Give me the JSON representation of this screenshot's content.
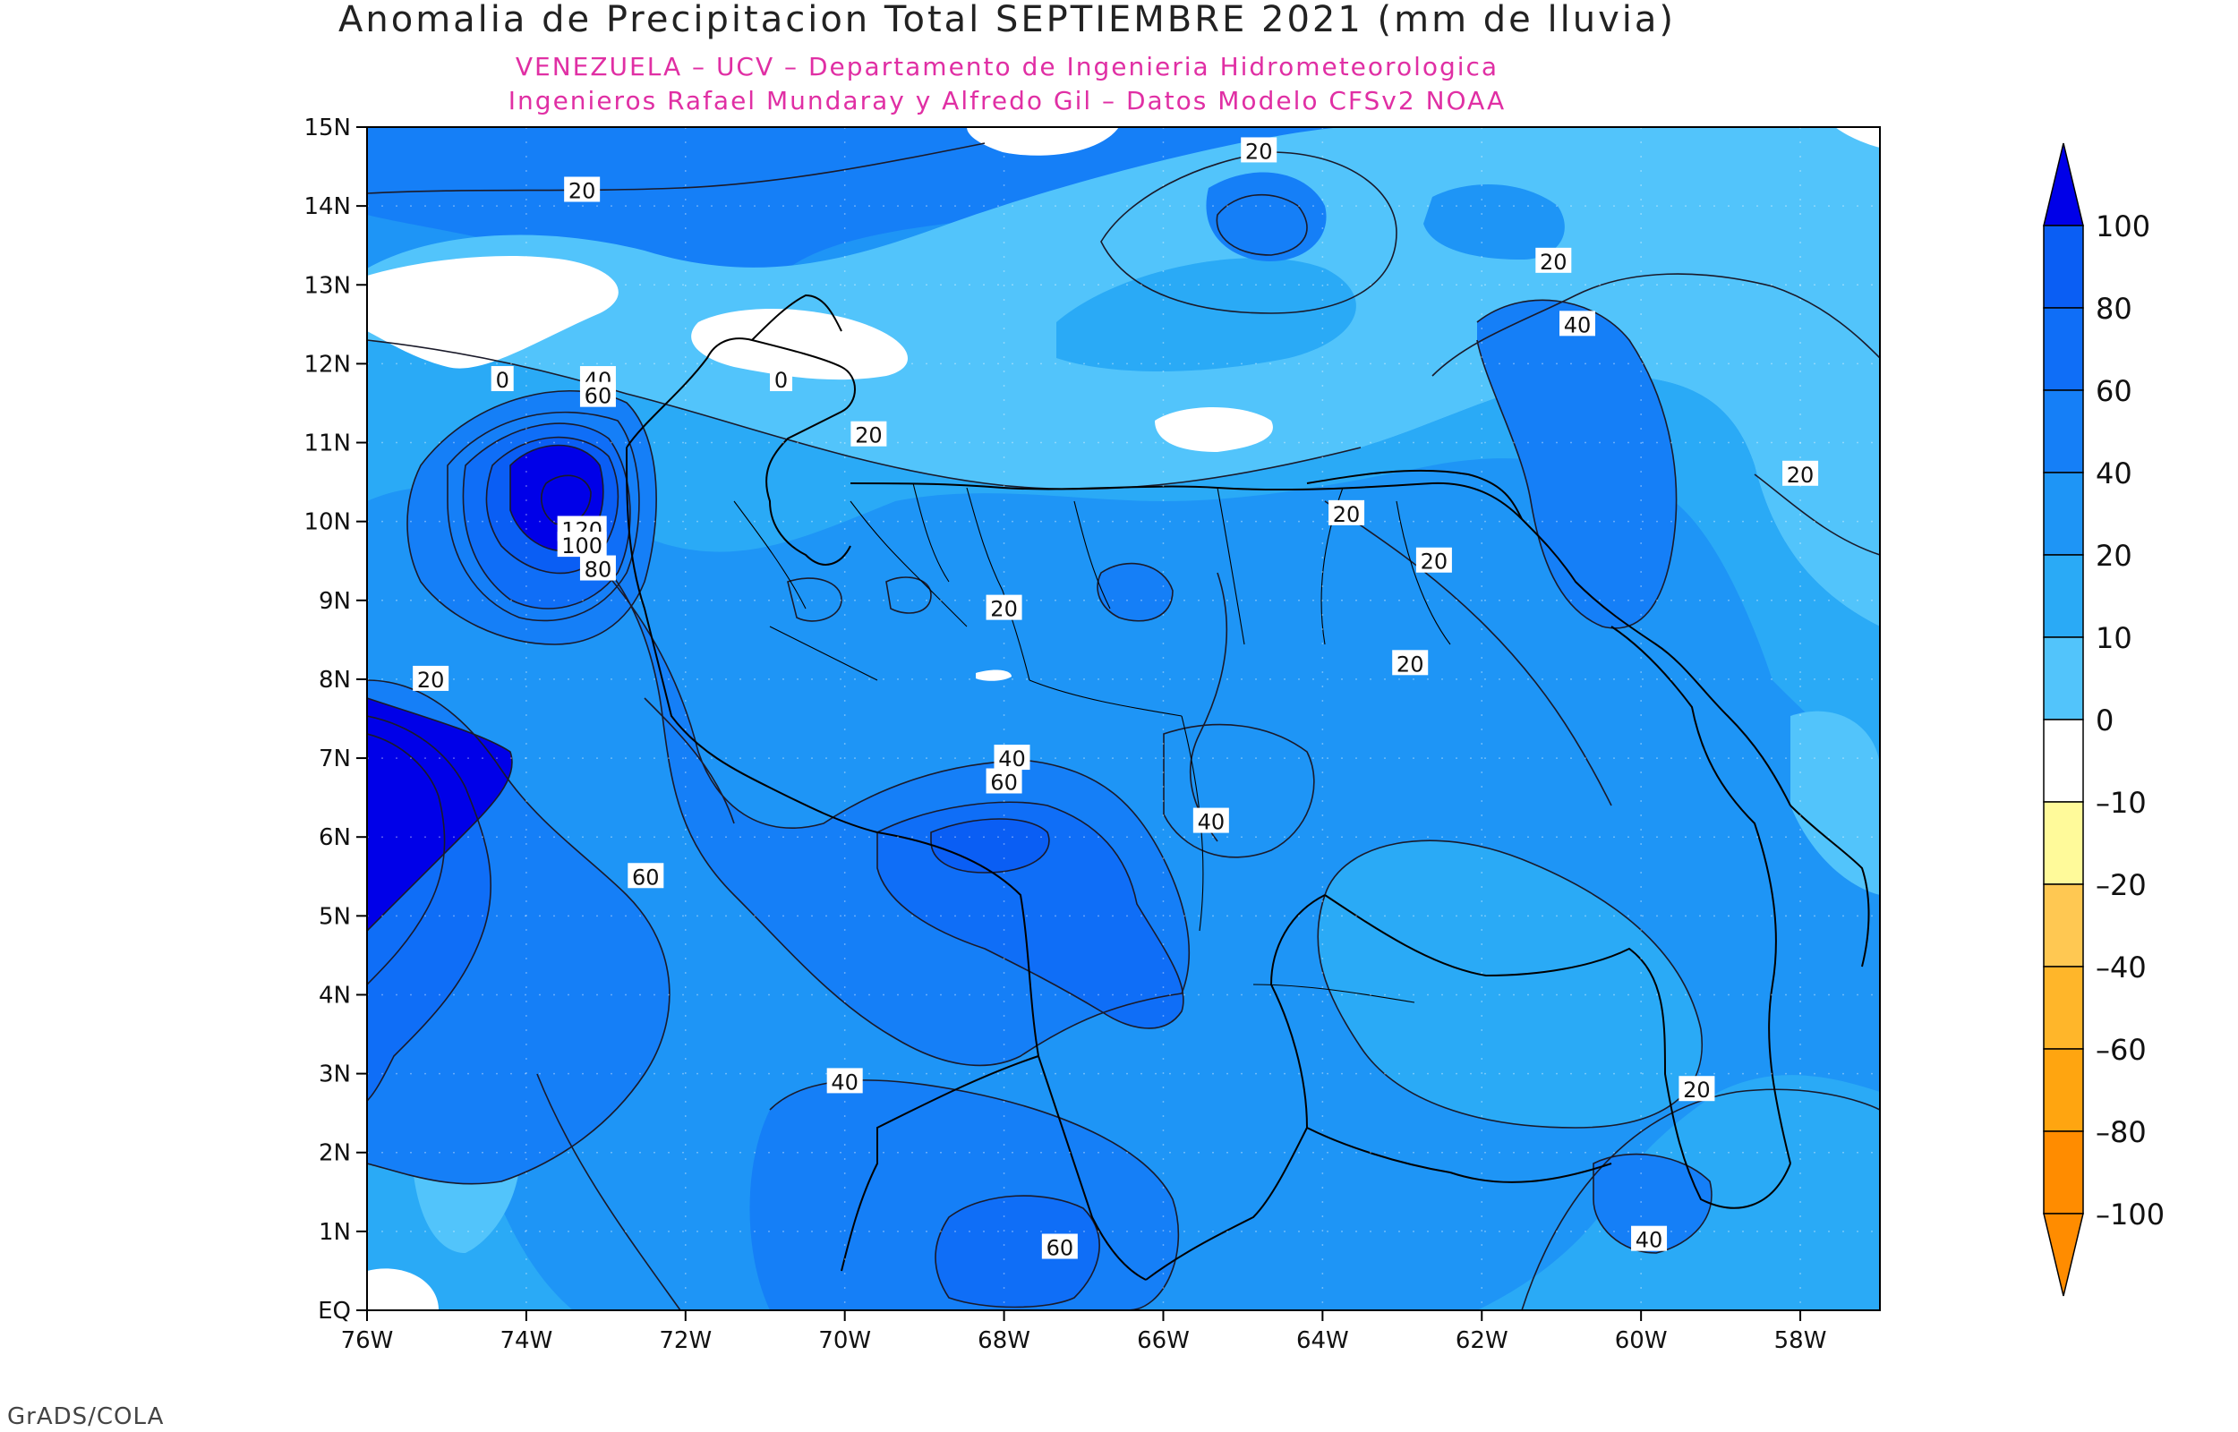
{
  "title": "Anomalia de Precipitacion Total SEPTIEMBRE 2021 (mm de lluvia)",
  "subtitle_1": "VENEZUELA – UCV – Departamento de Ingenieria Hidrometeorologica",
  "subtitle_2": "Ingenieros Rafael Mundaray y Alfredo Gil – Datos Modelo CFSv2 NOAA",
  "credit": "GrADS/COLA",
  "map": {
    "lon_range": [
      -76,
      -57
    ],
    "lat_range": [
      0,
      15
    ],
    "lat_ticks": [
      "EQ",
      "1N",
      "2N",
      "3N",
      "4N",
      "5N",
      "6N",
      "7N",
      "8N",
      "9N",
      "10N",
      "11N",
      "12N",
      "13N",
      "14N",
      "15N"
    ],
    "lon_ticks": [
      "76W",
      "74W",
      "72W",
      "70W",
      "68W",
      "66W",
      "64W",
      "62W",
      "60W",
      "58W"
    ],
    "contour_labels": [
      {
        "text": "20",
        "lon": -73.3,
        "lat": 14.2
      },
      {
        "text": "20",
        "lon": -64.8,
        "lat": 14.7
      },
      {
        "text": "20",
        "lon": -61.1,
        "lat": 13.3
      },
      {
        "text": "40",
        "lon": -60.8,
        "lat": 12.5
      },
      {
        "text": "0",
        "lon": -74.3,
        "lat": 11.8
      },
      {
        "text": "0",
        "lon": -70.8,
        "lat": 11.8
      },
      {
        "text": "40",
        "lon": -73.1,
        "lat": 11.8
      },
      {
        "text": "60",
        "lon": -73.1,
        "lat": 11.6
      },
      {
        "text": "20",
        "lon": -69.7,
        "lat": 11.1
      },
      {
        "text": "20",
        "lon": -58.0,
        "lat": 10.6
      },
      {
        "text": "120",
        "lon": -73.3,
        "lat": 9.9
      },
      {
        "text": "100",
        "lon": -73.3,
        "lat": 9.7
      },
      {
        "text": "80",
        "lon": -73.1,
        "lat": 9.4
      },
      {
        "text": "20",
        "lon": -63.7,
        "lat": 10.1
      },
      {
        "text": "20",
        "lon": -62.6,
        "lat": 9.5
      },
      {
        "text": "20",
        "lon": -68.0,
        "lat": 8.9
      },
      {
        "text": "20",
        "lon": -75.2,
        "lat": 8.0
      },
      {
        "text": "20",
        "lon": -62.9,
        "lat": 8.2
      },
      {
        "text": "40",
        "lon": -67.9,
        "lat": 7.0
      },
      {
        "text": "60",
        "lon": -68.0,
        "lat": 6.7
      },
      {
        "text": "40",
        "lon": -65.4,
        "lat": 6.2
      },
      {
        "text": "60",
        "lon": -72.5,
        "lat": 5.5
      },
      {
        "text": "40",
        "lon": -70.0,
        "lat": 2.9
      },
      {
        "text": "20",
        "lon": -59.3,
        "lat": 2.8
      },
      {
        "text": "40",
        "lon": -59.9,
        "lat": 0.9
      },
      {
        "text": "60",
        "lon": -67.3,
        "lat": 0.8
      }
    ]
  },
  "colorbar": {
    "levels": [
      "100",
      "80",
      "60",
      "40",
      "20",
      "10",
      "0",
      "–10",
      "–20",
      "–40",
      "–60",
      "–80",
      "–100"
    ],
    "colors": [
      "#0000e8",
      "#0a5ef4",
      "#0f6ef7",
      "#157ff7",
      "#1e95f6",
      "#2aaaf6",
      "#52c4fb",
      "#ffffff",
      "#fffa9a",
      "#ffc852",
      "#ffb62a",
      "#ffa510",
      "#ff8c00"
    ]
  }
}
